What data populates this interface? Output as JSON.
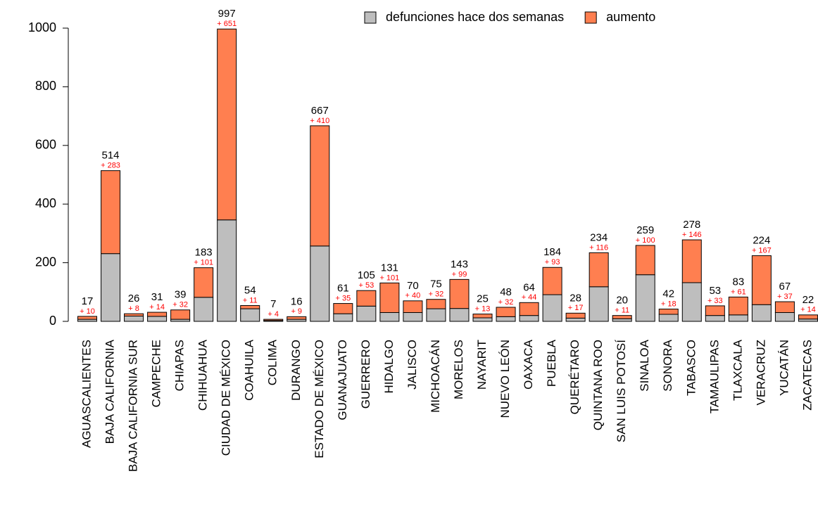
{
  "chart_data": {
    "type": "stacked_bar",
    "categories": [
      "AGUASCALIENTES",
      "BAJA CALIFORNIA",
      "BAJA CALIFORNIA SUR",
      "CAMPECHE",
      "CHIAPAS",
      "CHIHUAHUA",
      "CIUDAD DE MÉXICO",
      "COAHUILA",
      "COLIMA",
      "DURANGO",
      "ESTADO DE MÉXICO",
      "GUANAJUATO",
      "GUERRERO",
      "HIDALGO",
      "JALISCO",
      "MICHOACÁN",
      "MORELOS",
      "NAYARIT",
      "NUEVO LEÓN",
      "OAXACA",
      "PUEBLA",
      "QUERÉTARO",
      "QUINTANA ROO",
      "SAN LUIS POTOSÍ",
      "SINALOA",
      "SONORA",
      "TABASCO",
      "TAMAULIPAS",
      "TLAXCALA",
      "VERACRUZ",
      "YUCATÁN",
      "ZACATECAS"
    ],
    "series": [
      {
        "name": "defunciones hace dos semanas",
        "color": "#bebebe",
        "values": [
          7,
          231,
          18,
          17,
          7,
          82,
          346,
          43,
          3,
          7,
          257,
          26,
          52,
          30,
          30,
          43,
          44,
          12,
          16,
          20,
          91,
          11,
          118,
          9,
          159,
          24,
          132,
          20,
          22,
          57,
          30,
          8
        ]
      },
      {
        "name": "aumento",
        "color": "#ff7f50",
        "values": [
          10,
          283,
          8,
          14,
          32,
          101,
          651,
          11,
          4,
          9,
          410,
          35,
          53,
          101,
          40,
          32,
          99,
          13,
          32,
          44,
          93,
          17,
          116,
          11,
          100,
          18,
          146,
          33,
          61,
          167,
          37,
          14
        ],
        "value_labels": [
          "+ 10",
          "+ 283",
          "+ 8",
          "+ 14",
          "+ 32",
          "+ 101",
          "+ 651",
          "+ 11",
          "+ 4",
          "+ 9",
          "+ 410",
          "+ 35",
          "+ 53",
          "+ 101",
          "+ 40",
          "+ 32",
          "+ 99",
          "+ 13",
          "+ 32",
          "+ 44",
          "+ 93",
          "+ 17",
          "+ 116",
          "+ 11",
          "+ 100",
          "+ 18",
          "+ 146",
          "+ 33",
          "+ 61",
          "+ 167",
          "+ 37",
          "+ 14"
        ]
      }
    ],
    "totals": [
      17,
      514,
      26,
      31,
      39,
      183,
      997,
      54,
      7,
      16,
      667,
      61,
      105,
      131,
      70,
      75,
      143,
      25,
      48,
      64,
      184,
      28,
      234,
      20,
      259,
      42,
      278,
      53,
      83,
      224,
      67,
      22
    ],
    "ylim": [
      0,
      1000
    ],
    "yticks": [
      0,
      200,
      400,
      600,
      800,
      1000
    ],
    "legend": "top",
    "value_label_color": "#ff0000"
  }
}
